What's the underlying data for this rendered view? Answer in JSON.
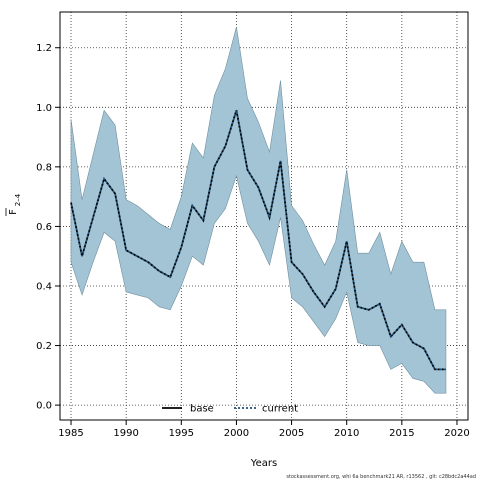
{
  "chart_data": {
    "type": "line",
    "xlabel": "Years",
    "ylabel_main": "F",
    "ylabel_sub": "2–4",
    "xlim": [
      1984,
      2021
    ],
    "ylim": [
      -0.05,
      1.32
    ],
    "x_ticks": [
      1985,
      1990,
      1995,
      2000,
      2005,
      2010,
      2015,
      2020
    ],
    "y_ticks": [
      0.0,
      0.2,
      0.4,
      0.6,
      0.8,
      1.0,
      1.2
    ],
    "y_tick_labels": [
      "0.0",
      "0.2",
      "0.4",
      "0.6",
      "0.8",
      "1.0",
      "1.2"
    ],
    "grid": true,
    "legend_position": "bottom-center",
    "band": {
      "x": [
        1985,
        1986,
        1987,
        1988,
        1989,
        1990,
        1991,
        1992,
        1993,
        1994,
        1995,
        1996,
        1997,
        1998,
        1999,
        2000,
        2001,
        2002,
        2003,
        2004,
        2005,
        2006,
        2007,
        2008,
        2009,
        2010,
        2011,
        2012,
        2013,
        2014,
        2015,
        2016,
        2017,
        2018,
        2019
      ],
      "upper": [
        0.96,
        0.69,
        0.84,
        0.99,
        0.94,
        0.69,
        0.67,
        0.64,
        0.61,
        0.59,
        0.7,
        0.88,
        0.83,
        1.04,
        1.13,
        1.27,
        1.03,
        0.95,
        0.85,
        1.09,
        0.67,
        0.62,
        0.54,
        0.47,
        0.55,
        0.79,
        0.51,
        0.51,
        0.58,
        0.44,
        0.55,
        0.48,
        0.48,
        0.32,
        0.32
      ],
      "lower": [
        0.48,
        0.37,
        0.48,
        0.58,
        0.55,
        0.38,
        0.37,
        0.36,
        0.33,
        0.32,
        0.4,
        0.5,
        0.47,
        0.61,
        0.66,
        0.77,
        0.61,
        0.55,
        0.47,
        0.63,
        0.36,
        0.33,
        0.28,
        0.23,
        0.29,
        0.38,
        0.21,
        0.2,
        0.2,
        0.12,
        0.14,
        0.09,
        0.08,
        0.04,
        0.04
      ],
      "color": "#a3c4d4",
      "edge_color": "#6f8f9e"
    },
    "series": [
      {
        "name": "current",
        "style": "dotted",
        "color": "#1f4e79",
        "values": [
          0.68,
          0.5,
          0.63,
          0.76,
          0.71,
          0.52,
          0.5,
          0.48,
          0.45,
          0.43,
          0.53,
          0.67,
          0.62,
          0.8,
          0.87,
          0.99,
          0.79,
          0.73,
          0.63,
          0.82,
          0.48,
          0.44,
          0.38,
          0.33,
          0.39,
          0.55,
          0.33,
          0.32,
          0.34,
          0.23,
          0.27,
          0.21,
          0.19,
          0.12,
          0.12
        ]
      }
    ],
    "legend": [
      {
        "label": "base",
        "style": "solid",
        "color": "#000000"
      },
      {
        "label": "current",
        "style": "dotted",
        "color": "#1f4e79"
      }
    ]
  },
  "footnote": "stockassessment.org, whi 6a benchmark21 AR, r13562 , git: c28bdc2a44ad"
}
